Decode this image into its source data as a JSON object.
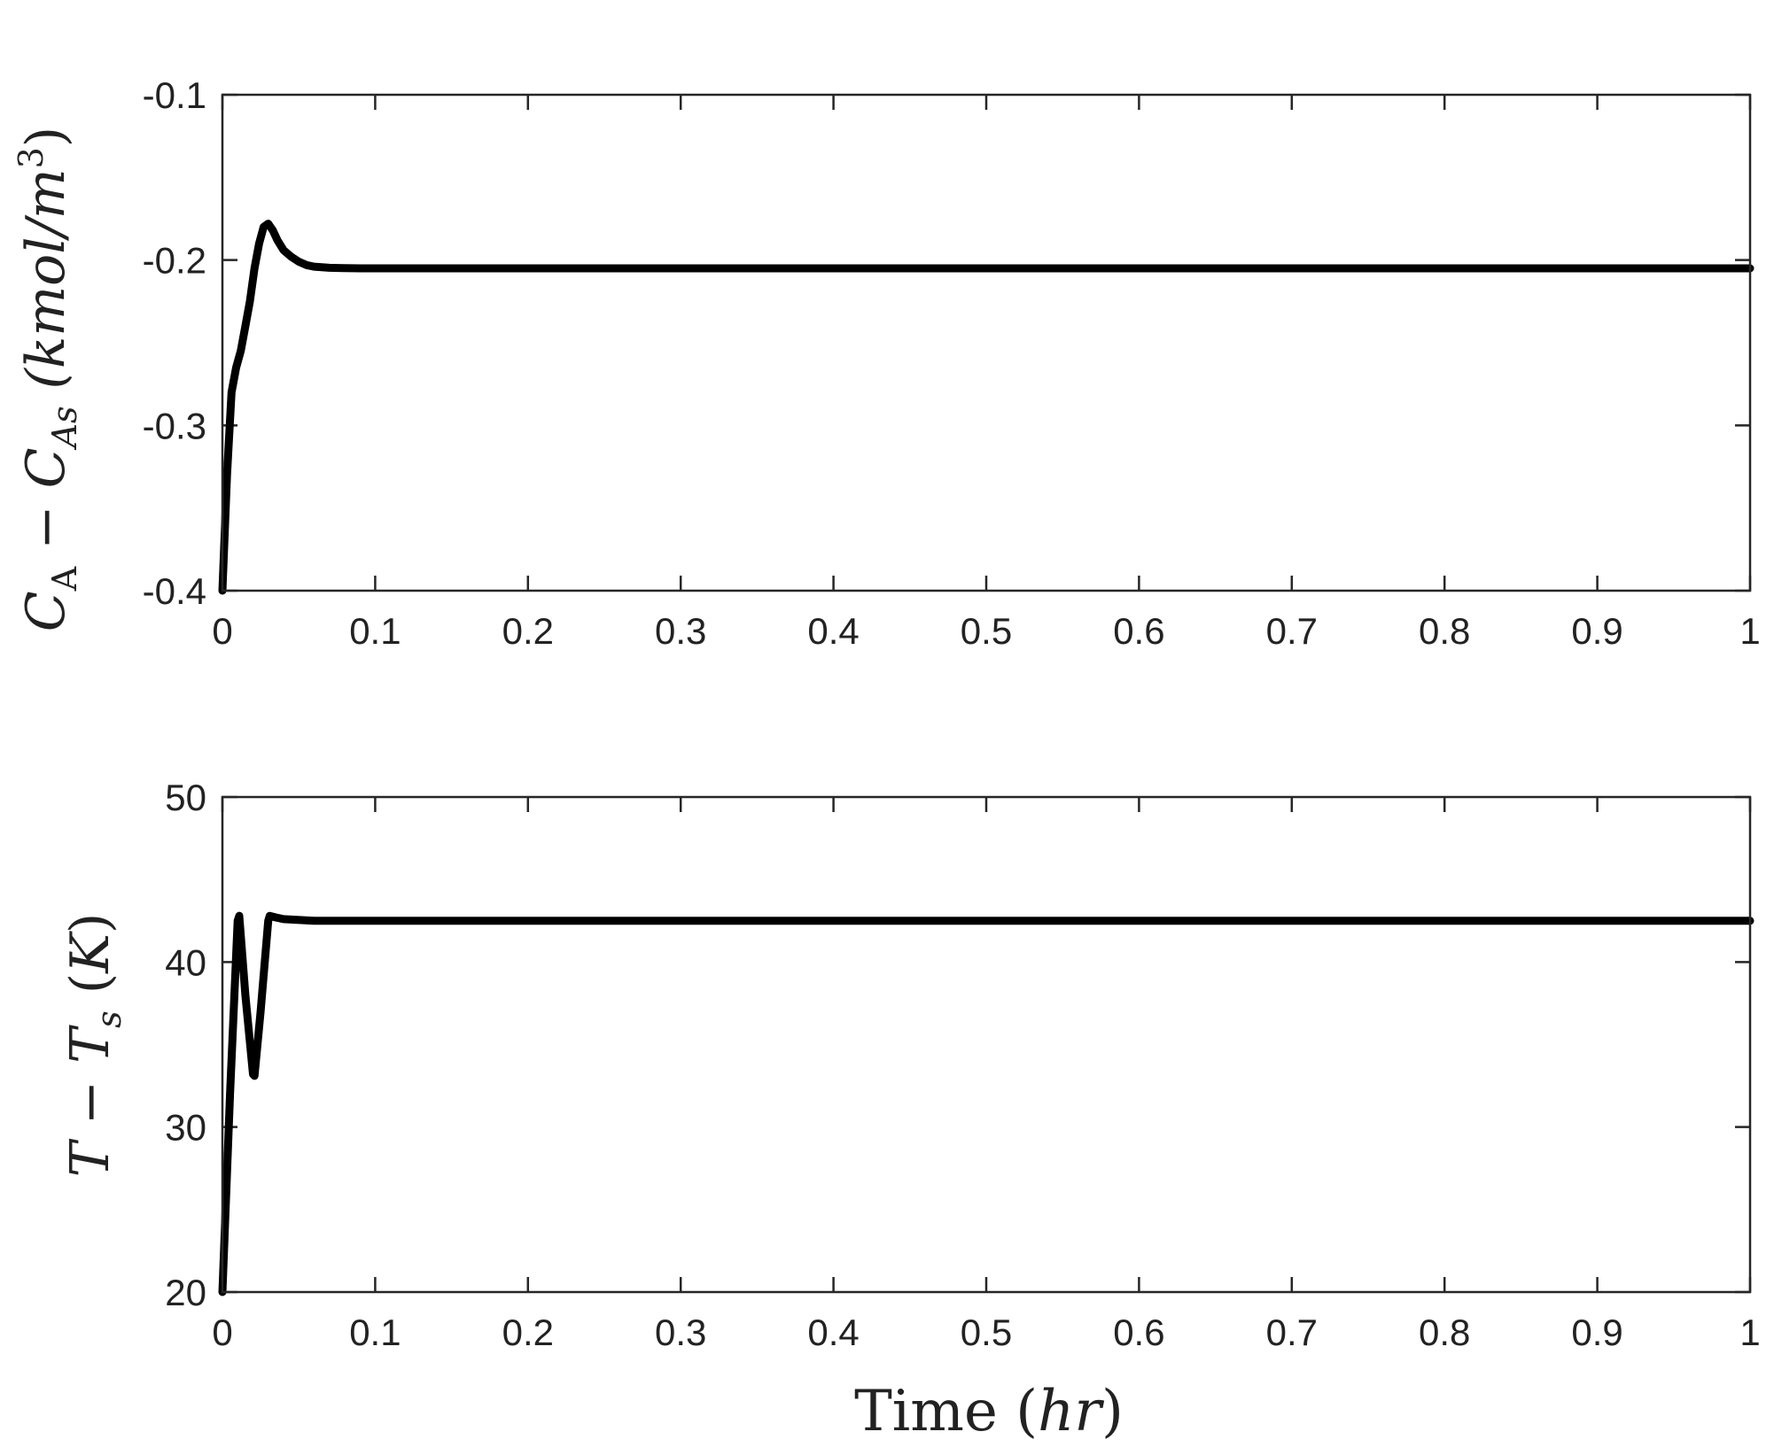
{
  "chart_data": [
    {
      "type": "line",
      "ylabel": "C_A − C_As (kmol/m^3)",
      "ylabel_parts": {
        "main": "C",
        "sub1": "A",
        "minus": " − ",
        "main2": "C",
        "sub2": "As",
        "unit_open": " (kmol/m",
        "unit_sup": "3",
        "unit_close": ")"
      },
      "xlim": [
        0,
        1
      ],
      "ylim": [
        -0.4,
        -0.1
      ],
      "xticks": [
        0,
        0.1,
        0.2,
        0.3,
        0.4,
        0.5,
        0.6,
        0.7,
        0.8,
        0.9,
        1
      ],
      "xtick_labels": [
        "0",
        "0.1",
        "0.2",
        "0.3",
        "0.4",
        "0.5",
        "0.6",
        "0.7",
        "0.8",
        "0.9",
        "1"
      ],
      "yticks": [
        -0.4,
        -0.3,
        -0.2,
        -0.1
      ],
      "ytick_labels": [
        "-0.4",
        "-0.3",
        "-0.2",
        "-0.1"
      ],
      "series": [
        {
          "color": "#000000",
          "x": [
            0,
            0.003,
            0.006,
            0.009,
            0.012,
            0.015,
            0.018,
            0.021,
            0.024,
            0.027,
            0.03,
            0.033,
            0.036,
            0.04,
            0.045,
            0.05,
            0.055,
            0.06,
            0.07,
            0.08,
            0.09,
            0.1,
            0.2,
            0.3,
            0.4,
            0.5,
            0.6,
            0.7,
            0.8,
            0.9,
            1.0
          ],
          "y": [
            -0.4,
            -0.33,
            -0.28,
            -0.265,
            -0.255,
            -0.24,
            -0.225,
            -0.205,
            -0.19,
            -0.18,
            -0.178,
            -0.182,
            -0.188,
            -0.194,
            -0.198,
            -0.201,
            -0.203,
            -0.204,
            -0.2047,
            -0.2049,
            -0.205,
            -0.205,
            -0.205,
            -0.205,
            -0.205,
            -0.205,
            -0.205,
            -0.205,
            -0.205,
            -0.205,
            -0.205
          ]
        }
      ]
    },
    {
      "type": "line",
      "ylabel": "T − T_s (K)",
      "ylabel_parts": {
        "main": "T",
        "minus": " − ",
        "main2": "T",
        "sub2": "s",
        "unit_open": " (",
        "unit_it": "K",
        "unit_close": ")"
      },
      "xlabel": "Time (hr)",
      "xlabel_parts": {
        "word": "Time ",
        "open": "(",
        "unit": "hr",
        "close": ")"
      },
      "xlim": [
        0,
        1
      ],
      "ylim": [
        20,
        50
      ],
      "xticks": [
        0,
        0.1,
        0.2,
        0.3,
        0.4,
        0.5,
        0.6,
        0.7,
        0.8,
        0.9,
        1
      ],
      "xtick_labels": [
        "0",
        "0.1",
        "0.2",
        "0.3",
        "0.4",
        "0.5",
        "0.6",
        "0.7",
        "0.8",
        "0.9",
        "1"
      ],
      "yticks": [
        20,
        30,
        40,
        50
      ],
      "ytick_labels": [
        "20",
        "30",
        "40",
        "50"
      ],
      "series": [
        {
          "color": "#000000",
          "x": [
            0,
            0.005,
            0.01,
            0.011,
            0.015,
            0.02,
            0.021,
            0.025,
            0.03,
            0.031,
            0.035,
            0.04,
            0.06,
            0.1,
            0.2,
            0.3,
            0.4,
            0.5,
            0.6,
            0.7,
            0.8,
            0.9,
            1.0
          ],
          "y": [
            20,
            32,
            42.5,
            42.8,
            38,
            33.2,
            33.1,
            37,
            42.5,
            42.8,
            42.7,
            42.6,
            42.5,
            42.5,
            42.5,
            42.5,
            42.5,
            42.5,
            42.5,
            42.5,
            42.5,
            42.5,
            42.5
          ]
        }
      ]
    }
  ]
}
